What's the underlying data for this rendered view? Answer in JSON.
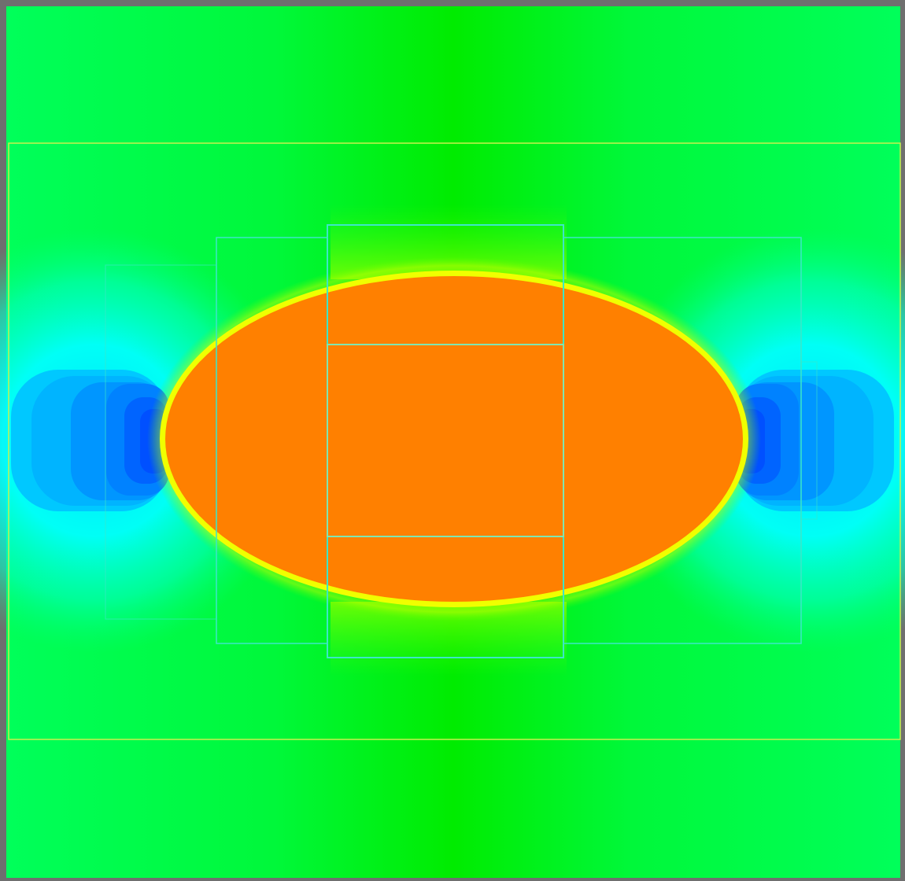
{
  "figure": {
    "kind": "simulation field with adaptive mesh refinement grid",
    "colormap": "jet",
    "colors": {
      "frame": "#6f6f6f",
      "background_field": "#00ff5a",
      "central_band": "#00f000",
      "halo_cyan": "#00ffff",
      "lobe_light_blue": "#00b4ff",
      "lobe_mid_blue": "#0082ff",
      "lobe_dark_blue": "#0050ff",
      "ellipse_core": "#ff8000",
      "ellipse_rim": "#f0ff00",
      "grid_level1": "#c8f050",
      "grid_level2": "#3de6c8",
      "grid_level3": "#7ee6b0"
    },
    "regions": [
      {
        "name": "dense-ellipse",
        "color_role": "ellipse_core"
      },
      {
        "name": "left-low-lobe",
        "color_role": "lobe_dark_blue"
      },
      {
        "name": "right-low-lobe",
        "color_role": "lobe_dark_blue"
      }
    ],
    "mesh_levels": [
      {
        "level": 1,
        "patches": 1
      },
      {
        "level": 2,
        "patches": 5
      },
      {
        "level": 3,
        "patches": 1
      }
    ]
  }
}
